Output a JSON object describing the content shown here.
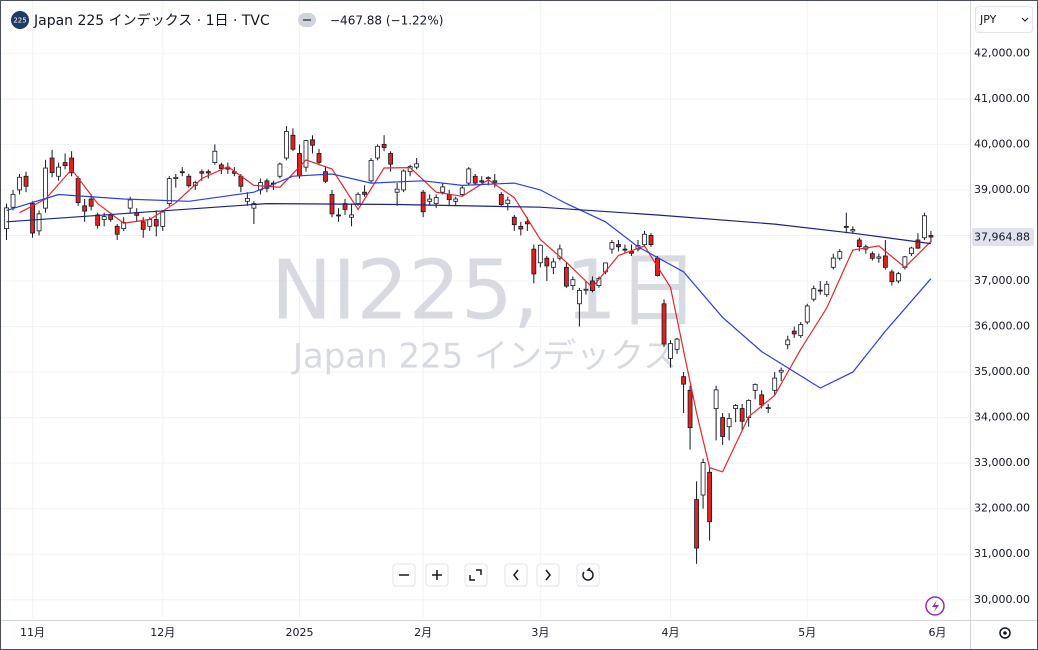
{
  "header": {
    "badge": "225",
    "title": "Japan 225 インデックス · 1日 · TVC",
    "change": "−467.88 (−1.22%)",
    "currency": "JPY"
  },
  "watermark": {
    "main": "NI225, 1日",
    "sub": "Japan 225 インデックス"
  },
  "chart_data": {
    "type": "candlestick",
    "up_color": "#ffffff",
    "down_color": "#e3211f",
    "outline_color": "#131722",
    "grid": true,
    "xlim": [
      -1,
      148
    ],
    "xticks": [
      {
        "value": 4,
        "label": "11月"
      },
      {
        "value": 24,
        "label": "12月"
      },
      {
        "value": 45,
        "label": "2025"
      },
      {
        "value": 64,
        "label": "2月"
      },
      {
        "value": 82,
        "label": "3月"
      },
      {
        "value": 102,
        "label": "4月"
      },
      {
        "value": 123,
        "label": "5月"
      },
      {
        "value": 143,
        "label": "6月"
      }
    ],
    "ylim": [
      29600,
      43170
    ],
    "yticks": [
      {
        "value": 30000,
        "label": "30,000.00"
      },
      {
        "value": 31000,
        "label": "31,000.00"
      },
      {
        "value": 32000,
        "label": "32,000.00"
      },
      {
        "value": 33000,
        "label": "33,000.00"
      },
      {
        "value": 34000,
        "label": "34,000.00"
      },
      {
        "value": 35000,
        "label": "35,000.00"
      },
      {
        "value": 36000,
        "label": "36,000.00"
      },
      {
        "value": 37000,
        "label": "37,000.00"
      },
      {
        "value": 38000,
        "label": "38,000.00"
      },
      {
        "value": 39000,
        "label": "39,000.00"
      },
      {
        "value": 40000,
        "label": "40,000.00"
      },
      {
        "value": 41000,
        "label": "41,000.00"
      },
      {
        "value": 42000,
        "label": "42,000.00"
      }
    ],
    "last_price": {
      "value": 37964.88,
      "label": "37,964.88"
    },
    "ohlc": [
      [
        38150,
        38700,
        37900,
        38605
      ],
      [
        38620,
        39000,
        38550,
        38903
      ],
      [
        39000,
        39350,
        38900,
        39277
      ],
      [
        39300,
        39400,
        38950,
        39081
      ],
      [
        38700,
        38750,
        37950,
        38053
      ],
      [
        38100,
        38550,
        38000,
        38474
      ],
      [
        38600,
        39660,
        38500,
        39480
      ],
      [
        39700,
        39880,
        39280,
        39381
      ],
      [
        39300,
        39600,
        39200,
        39500
      ],
      [
        39600,
        39800,
        39450,
        39533
      ],
      [
        39700,
        39850,
        39300,
        39376
      ],
      [
        39250,
        39300,
        38650,
        38721
      ],
      [
        38650,
        38800,
        38300,
        38535
      ],
      [
        38800,
        38900,
        38550,
        38642
      ],
      [
        38450,
        38500,
        38150,
        38220
      ],
      [
        38350,
        38500,
        38200,
        38414
      ],
      [
        38450,
        38500,
        38300,
        38352
      ],
      [
        38200,
        38250,
        37900,
        38026
      ],
      [
        38150,
        38400,
        38100,
        38283
      ],
      [
        38600,
        38850,
        38500,
        38780
      ],
      [
        38500,
        38600,
        38300,
        38442
      ],
      [
        38300,
        38400,
        37950,
        38134
      ],
      [
        38200,
        38400,
        38100,
        38349
      ],
      [
        38350,
        38550,
        37980,
        38208
      ],
      [
        38200,
        38550,
        38100,
        38513
      ],
      [
        38700,
        39300,
        38650,
        39248
      ],
      [
        39250,
        39350,
        39050,
        39276
      ],
      [
        39400,
        39500,
        39300,
        39395
      ],
      [
        39300,
        39350,
        39050,
        39091
      ],
      [
        39100,
        39200,
        39000,
        39160
      ],
      [
        39400,
        39450,
        39200,
        39367
      ],
      [
        39400,
        39450,
        39250,
        39372
      ],
      [
        39600,
        40000,
        39550,
        39849
      ],
      [
        39550,
        39600,
        39350,
        39470
      ],
      [
        39500,
        39600,
        39350,
        39457
      ],
      [
        39400,
        39500,
        39300,
        39364
      ],
      [
        39300,
        39350,
        38950,
        39081
      ],
      [
        38750,
        38950,
        38650,
        38813
      ],
      [
        38600,
        38750,
        38250,
        38701
      ],
      [
        39000,
        39250,
        38900,
        39161
      ],
      [
        39200,
        39250,
        38950,
        39036
      ],
      [
        39150,
        39200,
        39000,
        39130
      ],
      [
        39300,
        39600,
        39250,
        39568
      ],
      [
        39700,
        40400,
        39650,
        40281
      ],
      [
        40200,
        40350,
        39850,
        39894
      ],
      [
        39800,
        40000,
        39250,
        39307
      ],
      [
        39500,
        40100,
        39400,
        40083
      ],
      [
        40100,
        40200,
        39800,
        39981
      ],
      [
        39800,
        39900,
        39550,
        39605
      ],
      [
        39400,
        39500,
        39150,
        39190
      ],
      [
        38900,
        39000,
        38400,
        38474
      ],
      [
        38450,
        38600,
        38300,
        38445
      ],
      [
        38700,
        38800,
        38450,
        38572
      ],
      [
        38400,
        38700,
        38200,
        38451
      ],
      [
        38700,
        38950,
        38650,
        38903
      ],
      [
        38950,
        39100,
        38850,
        38902
      ],
      [
        39200,
        39700,
        39150,
        39646
      ],
      [
        39700,
        40000,
        39650,
        39958
      ],
      [
        40000,
        40200,
        39850,
        39931
      ],
      [
        39800,
        39850,
        39400,
        39565
      ],
      [
        38950,
        39150,
        38650,
        39016
      ],
      [
        39000,
        39450,
        38950,
        39414
      ],
      [
        39400,
        39550,
        39300,
        39513
      ],
      [
        39500,
        39700,
        39450,
        39572
      ],
      [
        38950,
        39000,
        38400,
        38520
      ],
      [
        38750,
        38900,
        38650,
        38798
      ],
      [
        38700,
        38900,
        38600,
        38831
      ],
      [
        38950,
        39150,
        38900,
        39066
      ],
      [
        38900,
        39000,
        38650,
        38787
      ],
      [
        38750,
        38850,
        38650,
        38801
      ],
      [
        38900,
        39100,
        38850,
        39043
      ],
      [
        39150,
        39500,
        39100,
        39461
      ],
      [
        39300,
        39350,
        39100,
        39149
      ],
      [
        39200,
        39300,
        39150,
        39174
      ],
      [
        39250,
        39300,
        39100,
        39270
      ],
      [
        39200,
        39350,
        39050,
        39164
      ],
      [
        38900,
        38950,
        38650,
        38678
      ],
      [
        38700,
        38850,
        38550,
        38776
      ],
      [
        38400,
        38450,
        38100,
        38237
      ],
      [
        38200,
        38300,
        38000,
        38142
      ],
      [
        38300,
        38400,
        38100,
        38256
      ],
      [
        37700,
        37800,
        36950,
        37155
      ],
      [
        37400,
        37800,
        37300,
        37785
      ],
      [
        37500,
        37550,
        37000,
        37331
      ],
      [
        37300,
        37500,
        37150,
        37418
      ],
      [
        37500,
        37800,
        37450,
        37704
      ],
      [
        37300,
        37400,
        36850,
        36887
      ],
      [
        36900,
        37100,
        36800,
        37028
      ],
      [
        36500,
        36850,
        36000,
        36793
      ],
      [
        36800,
        37000,
        36700,
        36819
      ],
      [
        37000,
        37100,
        36750,
        36790
      ],
      [
        36900,
        37100,
        36850,
        37053
      ],
      [
        37200,
        37400,
        37150,
        37396
      ],
      [
        37700,
        37900,
        37600,
        37845
      ],
      [
        37800,
        37900,
        37650,
        37751
      ],
      [
        37700,
        37800,
        37600,
        37677
      ],
      [
        37650,
        37800,
        37550,
        37608
      ],
      [
        37700,
        37900,
        37650,
        37780
      ],
      [
        37800,
        38100,
        37750,
        38027
      ],
      [
        38000,
        38050,
        37750,
        37799
      ],
      [
        37500,
        37550,
        37100,
        37120
      ],
      [
        36500,
        36600,
        35550,
        35617
      ],
      [
        35300,
        35700,
        35100,
        35624
      ],
      [
        35500,
        35750,
        35400,
        35725
      ],
      [
        34900,
        35000,
        34100,
        34735
      ],
      [
        34600,
        34700,
        33300,
        33780
      ],
      [
        32200,
        32600,
        30790,
        31136
      ],
      [
        32300,
        33100,
        32000,
        33012
      ],
      [
        32800,
        32900,
        31300,
        31714
      ],
      [
        34200,
        34700,
        33500,
        34609
      ],
      [
        34000,
        34100,
        33400,
        33585
      ],
      [
        33800,
        34100,
        33500,
        33982
      ],
      [
        34200,
        34300,
        33900,
        34267
      ],
      [
        34200,
        34300,
        33700,
        33920
      ],
      [
        34000,
        34400,
        33800,
        34377
      ],
      [
        34600,
        34750,
        34400,
        34730
      ],
      [
        34500,
        34600,
        34200,
        34279
      ],
      [
        34200,
        34300,
        34100,
        34220
      ],
      [
        34600,
        35000,
        34500,
        34868
      ],
      [
        35000,
        35100,
        34800,
        35039
      ],
      [
        35600,
        35800,
        35500,
        35705
      ],
      [
        35900,
        36000,
        35750,
        35839
      ],
      [
        35800,
        36100,
        35750,
        36045
      ],
      [
        36100,
        36500,
        36050,
        36452
      ],
      [
        36600,
        36900,
        36550,
        36830
      ],
      [
        36800,
        37000,
        36700,
        36780
      ],
      [
        36700,
        37000,
        36650,
        36928
      ],
      [
        37300,
        37600,
        37250,
        37503
      ],
      [
        37500,
        37700,
        37450,
        37644
      ],
      [
        38200,
        38500,
        38050,
        38183
      ],
      [
        38100,
        38200,
        38050,
        38128
      ],
      [
        37900,
        37950,
        37650,
        37755
      ],
      [
        37700,
        37800,
        37600,
        37753
      ],
      [
        37600,
        37650,
        37450,
        37498
      ],
      [
        37500,
        37600,
        37400,
        37529
      ],
      [
        37550,
        37900,
        37250,
        37299
      ],
      [
        37200,
        37250,
        36900,
        36985
      ],
      [
        37000,
        37200,
        36950,
        37160
      ],
      [
        37300,
        37550,
        37250,
        37531
      ],
      [
        37600,
        37750,
        37550,
        37724
      ],
      [
        37900,
        38050,
        37700,
        37722
      ],
      [
        37950,
        38500,
        37900,
        38432
      ],
      [
        38000,
        38100,
        37850,
        37964.88
      ]
    ],
    "series": [
      {
        "color": "#e8262a",
        "x": [
          2,
          6,
          10,
          14,
          18,
          22,
          26,
          30,
          34,
          38,
          42,
          46,
          50,
          54,
          58,
          62,
          66,
          70,
          74,
          78,
          82,
          86,
          90,
          94,
          98,
          102,
          104,
          106,
          108,
          110,
          114,
          118,
          122,
          126,
          130,
          134,
          138,
          142
        ],
        "values": [
          38500,
          38800,
          39450,
          38700,
          38270,
          38350,
          38720,
          39250,
          39510,
          39100,
          39060,
          39660,
          39460,
          38570,
          39480,
          39490,
          38950,
          38860,
          39220,
          38830,
          37910,
          37410,
          36860,
          37560,
          37770,
          36860,
          35470,
          34100,
          32900,
          32810,
          34020,
          34490,
          35500,
          36410,
          37680,
          37770,
          37300,
          37870
        ]
      },
      {
        "color": "#2b3fe0",
        "x": [
          0,
          8,
          18,
          28,
          38,
          44,
          50,
          56,
          64,
          70,
          78,
          82,
          86,
          92,
          97,
          104,
          110,
          116,
          125,
          130,
          135,
          142
        ],
        "values": [
          38550,
          38900,
          38800,
          38750,
          38950,
          39300,
          39350,
          39150,
          39200,
          39100,
          39150,
          39000,
          38700,
          38300,
          37750,
          37200,
          36200,
          35450,
          34650,
          35000,
          35900,
          37050
        ]
      },
      {
        "color": "#1a237e",
        "x": [
          0,
          20,
          40,
          60,
          82,
          100,
          118,
          130,
          142
        ],
        "values": [
          38300,
          38500,
          38700,
          38680,
          38620,
          38450,
          38250,
          38050,
          37820
        ]
      }
    ]
  }
}
